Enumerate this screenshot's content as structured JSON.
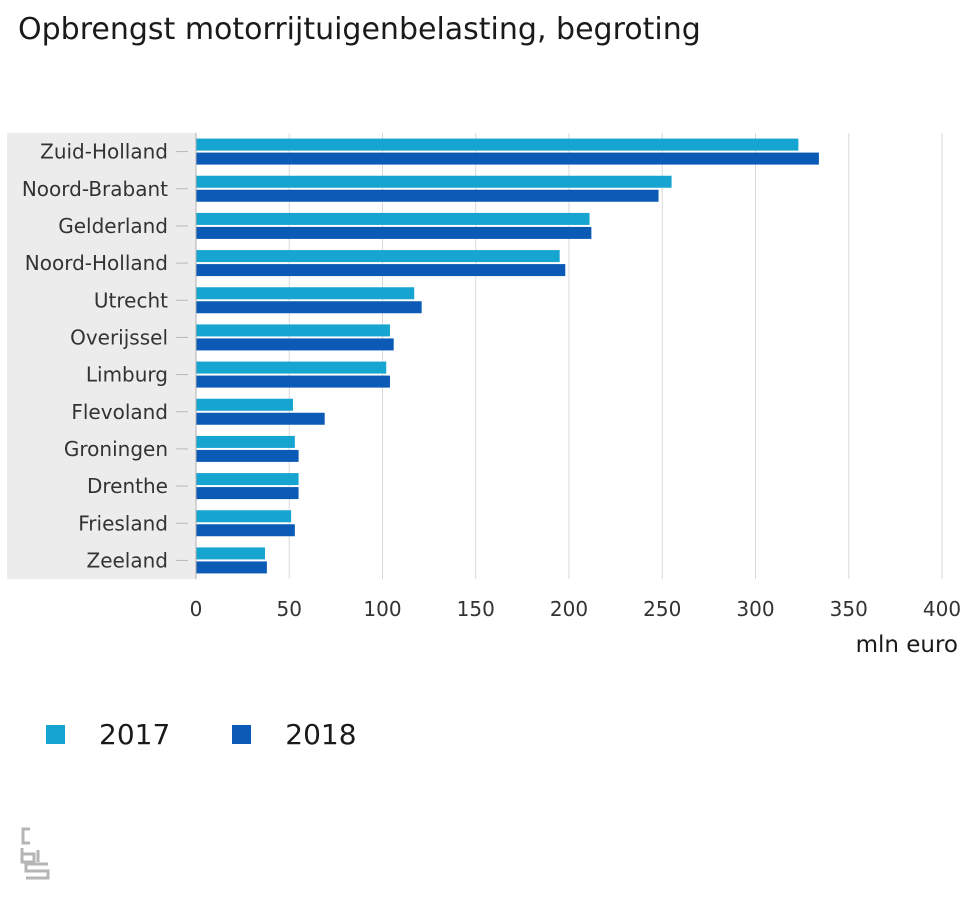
{
  "chart_data": {
    "type": "bar",
    "orientation": "horizontal",
    "title": "Opbrengst motorrijtuigenbelasting, begroting",
    "xlabel": "mln euro",
    "ylabel": "",
    "xlim": [
      0,
      400
    ],
    "xticks": [
      0,
      50,
      100,
      150,
      200,
      250,
      300,
      350,
      400
    ],
    "grid": "vertical",
    "legend_position": "bottom-left",
    "categories": [
      "Zuid-Holland",
      "Noord-Brabant",
      "Gelderland",
      "Noord-Holland",
      "Utrecht",
      "Overijssel",
      "Limburg",
      "Flevoland",
      "Groningen",
      "Drenthe",
      "Friesland",
      "Zeeland"
    ],
    "series": [
      {
        "name": "2017",
        "color": "#16a4d0",
        "values": [
          323,
          255,
          211,
          195,
          117,
          104,
          102,
          52,
          53,
          55,
          51,
          37
        ]
      },
      {
        "name": "2018",
        "color": "#0b5ab5",
        "values": [
          334,
          248,
          212,
          198,
          121,
          106,
          104,
          69,
          55,
          55,
          53,
          38
        ]
      }
    ]
  },
  "logo": {
    "text": "cbs",
    "icon": "cbs-logo-icon"
  }
}
